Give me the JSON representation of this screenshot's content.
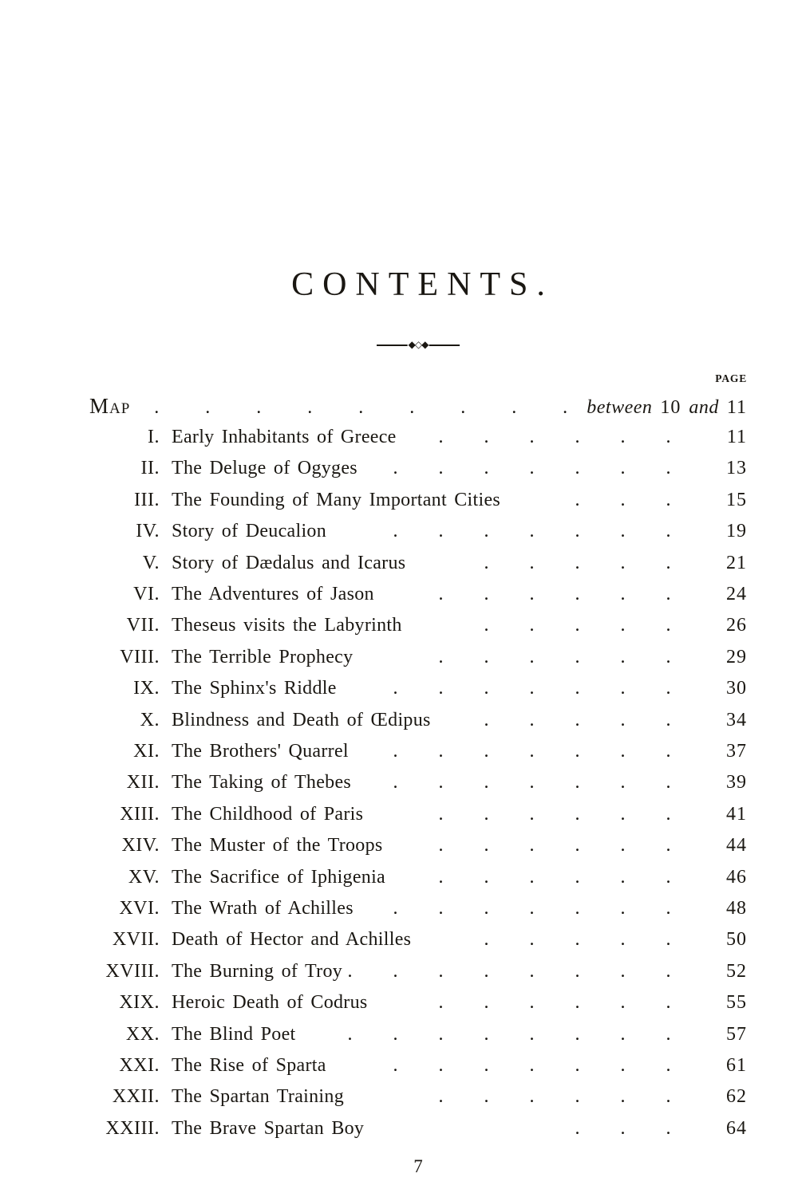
{
  "page": {
    "title": "CONTENTS.",
    "divider_ornament": "◆◇◆",
    "column_header": "PAGE",
    "folio": "7"
  },
  "map_row": {
    "label": "Map",
    "dots": 9,
    "ref": {
      "word1": "between",
      "num1": "10",
      "word2": "and",
      "num2": "11"
    }
  },
  "entries": [
    {
      "numeral": "I.",
      "title": "Early Inhabitants of Greece",
      "dots": 6,
      "page": "11"
    },
    {
      "numeral": "II.",
      "title": "The Deluge of Ogyges",
      "dots": 7,
      "page": "13"
    },
    {
      "numeral": "III.",
      "title": "The Founding of Many Important Cities",
      "dots": 3,
      "page": "15"
    },
    {
      "numeral": "IV.",
      "title": "Story of Deucalion",
      "dots": 7,
      "page": "19"
    },
    {
      "numeral": "V.",
      "title": "Story of Dædalus and Icarus",
      "dots": 5,
      "page": "21"
    },
    {
      "numeral": "VI.",
      "title": "The Adventures of Jason",
      "dots": 6,
      "page": "24"
    },
    {
      "numeral": "VII.",
      "title": "Theseus visits the Labyrinth",
      "dots": 5,
      "page": "26"
    },
    {
      "numeral": "VIII.",
      "title": "The Terrible Prophecy",
      "dots": 6,
      "page": "29"
    },
    {
      "numeral": "IX.",
      "title": "The Sphinx's Riddle",
      "dots": 7,
      "page": "30"
    },
    {
      "numeral": "X.",
      "title": "Blindness and Death of Œdipus",
      "dots": 5,
      "page": "34"
    },
    {
      "numeral": "XI.",
      "title": "The Brothers' Quarrel",
      "dots": 7,
      "page": "37"
    },
    {
      "numeral": "XII.",
      "title": "The Taking of Thebes",
      "dots": 7,
      "page": "39"
    },
    {
      "numeral": "XIII.",
      "title": "The Childhood of Paris",
      "dots": 6,
      "page": "41"
    },
    {
      "numeral": "XIV.",
      "title": "The Muster of the Troops",
      "dots": 6,
      "page": "44"
    },
    {
      "numeral": "XV.",
      "title": "The Sacrifice of Iphigenia",
      "dots": 6,
      "page": "46"
    },
    {
      "numeral": "XVI.",
      "title": "The Wrath of Achilles",
      "dots": 7,
      "page": "48"
    },
    {
      "numeral": "XVII.",
      "title": "Death of Hector and Achilles",
      "dots": 5,
      "page": "50"
    },
    {
      "numeral": "XVIII.",
      "title": "The Burning of Troy",
      "dots": 8,
      "page": "52"
    },
    {
      "numeral": "XIX.",
      "title": "Heroic Death of Codrus",
      "dots": 6,
      "page": "55"
    },
    {
      "numeral": "XX.",
      "title": "The Blind Poet",
      "dots": 8,
      "page": "57"
    },
    {
      "numeral": "XXI.",
      "title": "The Rise of Sparta",
      "dots": 7,
      "page": "61"
    },
    {
      "numeral": "XXII.",
      "title": "The Spartan Training",
      "dots": 6,
      "page": "62"
    },
    {
      "numeral": "XXIII.",
      "title": "The Brave Spartan Boy",
      "dots": 3,
      "page": "64"
    }
  ]
}
